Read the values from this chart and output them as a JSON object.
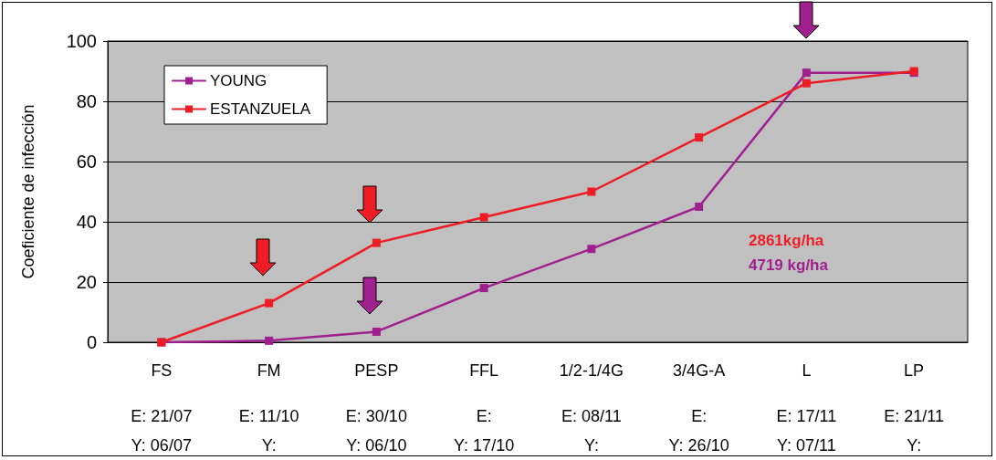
{
  "chart_data": {
    "type": "line",
    "ylabel": "Coeficiente de infección",
    "categories": [
      "FS",
      "FM",
      "PESP",
      "FFL",
      "1/2-1/4G",
      "3/4G-A",
      "L",
      "LP"
    ],
    "series": [
      {
        "name": "YOUNG",
        "color": "#a0208f",
        "values": [
          0,
          0.5,
          3.5,
          18,
          31,
          45,
          89.5,
          89.5
        ]
      },
      {
        "name": "ESTANZUELA",
        "color": "#ee1c25",
        "values": [
          0,
          13,
          33,
          41.5,
          50,
          68,
          86,
          90
        ]
      }
    ],
    "annotations": [
      "2861kg/ha",
      "4719 kg/ha",
      "E: 21/07\nY: 06/07",
      "E: 11/10\nY:",
      "E: 30/10\nY: 06/10",
      "E:\nY: 17/10",
      "E: 08/11\nY:",
      "E:\nY: 26/10",
      "E: 17/11\nY: 07/11",
      "E: 21/11\nY:"
    ],
    "ylim": [
      0,
      100
    ],
    "yticks": [
      0,
      20,
      40,
      60,
      80,
      100
    ],
    "grid": "y",
    "legend": "top left",
    "marker": "square",
    "line_style": "solid"
  }
}
